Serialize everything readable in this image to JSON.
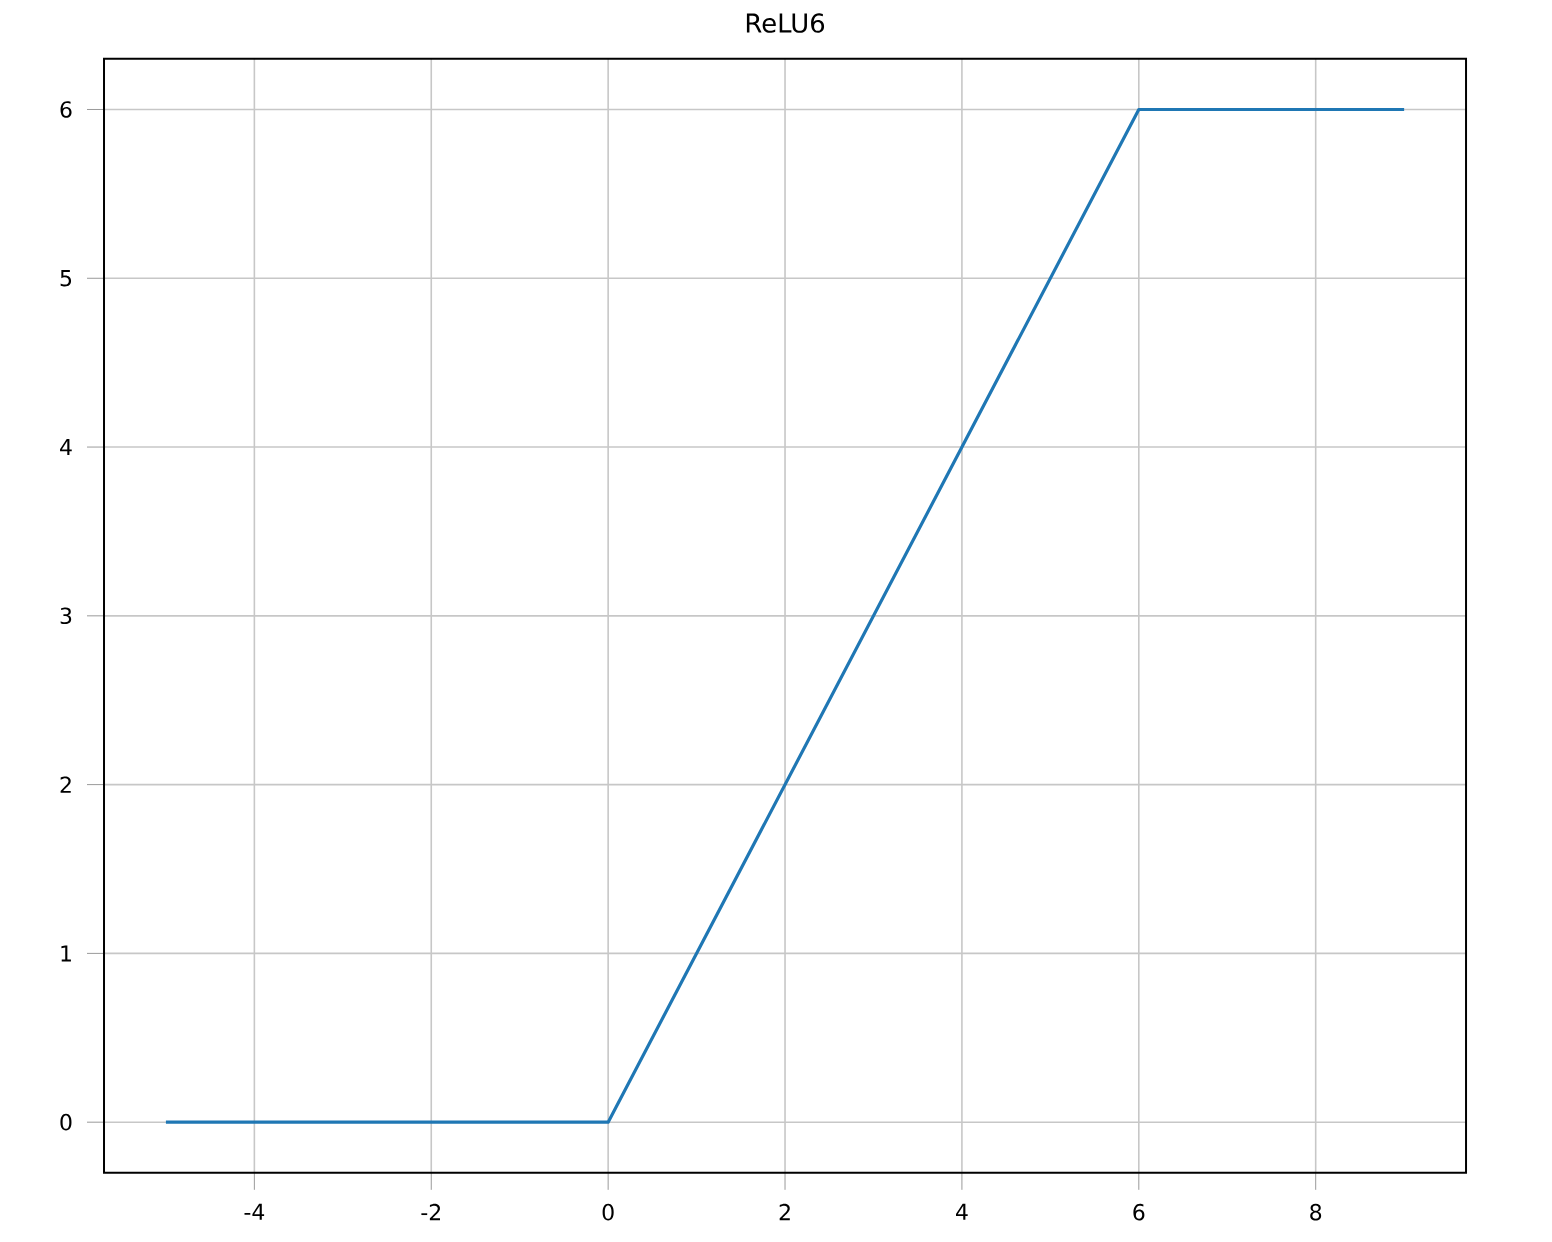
{
  "chart_data": {
    "type": "line",
    "title": "ReLU6",
    "x": [
      -5,
      0,
      6,
      9
    ],
    "values": [
      0,
      0,
      6,
      6
    ],
    "color": "#1f77b4",
    "xlim": [
      -5.7,
      9.7
    ],
    "ylim": [
      -0.3,
      6.3
    ],
    "xticks": [
      -4,
      -2,
      0,
      2,
      4,
      6,
      8
    ],
    "yticks": [
      0,
      1,
      2,
      3,
      4,
      5,
      6
    ],
    "grid": true
  }
}
